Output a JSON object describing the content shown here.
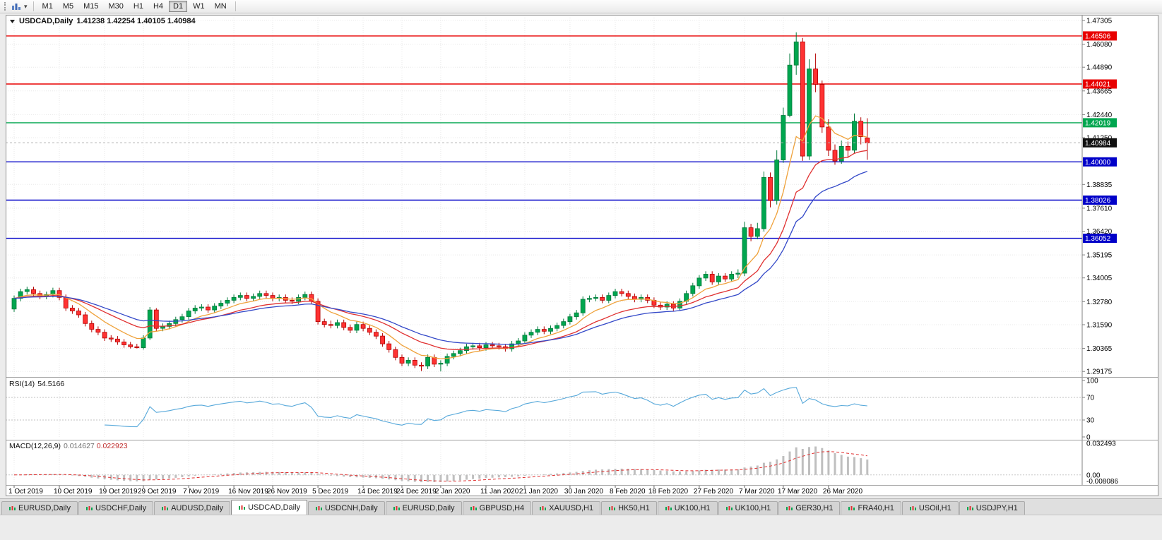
{
  "toolbar": {
    "timeframes": [
      "M1",
      "M5",
      "M15",
      "M30",
      "H1",
      "H4",
      "D1",
      "W1",
      "MN"
    ],
    "active_timeframe": "D1"
  },
  "chart": {
    "title_symbol": "USDCAD,Daily",
    "title_ohlc": "1.41238 1.42254 1.40105 1.40984"
  },
  "indicators": {
    "rsi": {
      "label": "RSI(14)",
      "value": "54.5166",
      "period": 14,
      "axis": [
        "100",
        "70",
        "30",
        "0"
      ],
      "levels": [
        70,
        30
      ],
      "color": "#56a8da"
    },
    "macd": {
      "label": "MACD(12,26,9)",
      "main_value": "0.014627",
      "signal_value": "0.022923",
      "fast": 12,
      "slow": 26,
      "signal": 9,
      "axis": [
        "0.032493",
        "0.00",
        "-0.008086"
      ],
      "max": 0.032493,
      "min": -0.008086,
      "histogram_color": "#bfbfbf",
      "signal_color": "#e03030"
    }
  },
  "chart_data": {
    "type": "candlestick",
    "symbol": "USDCAD",
    "timeframe": "Daily",
    "current_price": 1.40984,
    "current_price_label": "1.40984",
    "ohlc_current": {
      "open": 1.41238,
      "high": 1.42254,
      "low": 1.40105,
      "close": 1.40984
    },
    "y_range": {
      "top": 1.4745,
      "bottom": 1.29
    },
    "y_axis_ticks": [
      "1.47305",
      "1.46080",
      "1.44890",
      "1.43665",
      "1.42440",
      "1.41250",
      "1.38835",
      "1.37610",
      "1.36420",
      "1.35195",
      "1.34005",
      "1.32780",
      "1.31590",
      "1.30365",
      "1.29175"
    ],
    "horizontal_lines": [
      {
        "price": 1.46506,
        "label": "1.46506",
        "color": "#e80000"
      },
      {
        "price": 1.44021,
        "label": "1.44021",
        "color": "#e80000"
      },
      {
        "price": 1.42019,
        "label": "1.42019",
        "color": "#00a64f"
      },
      {
        "price": 1.4,
        "label": "1.40000",
        "color": "#0000c8"
      },
      {
        "price": 1.38026,
        "label": "1.38026",
        "color": "#0000c8"
      },
      {
        "price": 1.36052,
        "label": "1.36052",
        "color": "#0000c8"
      }
    ],
    "moving_averages": [
      {
        "period": 8,
        "color": "#efa23b"
      },
      {
        "period": 17,
        "color": "#e03030"
      },
      {
        "period": 26,
        "color": "#3348c8"
      }
    ],
    "colors": {
      "up": "#00a64f",
      "up_border": "#007a3a",
      "down": "#ff3232",
      "down_border": "#b40000",
      "grid": "#e8e8e8"
    },
    "x_axis_ticks": [
      {
        "i": 0,
        "label": "1 Oct 2019"
      },
      {
        "i": 7,
        "label": "10 Oct 2019"
      },
      {
        "i": 14,
        "label": "19 Oct 2019"
      },
      {
        "i": 20,
        "label": "29 Oct 2019"
      },
      {
        "i": 27,
        "label": "7 Nov 2019"
      },
      {
        "i": 34,
        "label": "16 Nov 2019"
      },
      {
        "i": 40,
        "label": "26 Nov 2019"
      },
      {
        "i": 47,
        "label": "5 Dec 2019"
      },
      {
        "i": 54,
        "label": "14 Dec 2019"
      },
      {
        "i": 60,
        "label": "24 Dec 2019"
      },
      {
        "i": 66,
        "label": "2 Jan 2020"
      },
      {
        "i": 73,
        "label": "11 Jan 2020"
      },
      {
        "i": 79,
        "label": "21 Jan 2020"
      },
      {
        "i": 86,
        "label": "30 Jan 2020"
      },
      {
        "i": 93,
        "label": "8 Feb 2020"
      },
      {
        "i": 99,
        "label": "18 Feb 2020"
      },
      {
        "i": 106,
        "label": "27 Feb 2020"
      },
      {
        "i": 113,
        "label": "7 Mar 2020"
      },
      {
        "i": 119,
        "label": "17 Mar 2020"
      },
      {
        "i": 126,
        "label": "26 Mar 2020"
      }
    ],
    "candles": [
      [
        1.324,
        1.331,
        1.3225,
        1.3295
      ],
      [
        1.3295,
        1.3345,
        1.328,
        1.333
      ],
      [
        1.333,
        1.3355,
        1.3315,
        1.334
      ],
      [
        1.334,
        1.3355,
        1.3305,
        1.332
      ],
      [
        1.332,
        1.3335,
        1.329,
        1.3305
      ],
      [
        1.3305,
        1.333,
        1.329,
        1.3315
      ],
      [
        1.3315,
        1.335,
        1.33,
        1.3335
      ],
      [
        1.3335,
        1.335,
        1.3285,
        1.33
      ],
      [
        1.33,
        1.3315,
        1.323,
        1.3245
      ],
      [
        1.3245,
        1.326,
        1.3215,
        1.323
      ],
      [
        1.323,
        1.3245,
        1.3195,
        1.321
      ],
      [
        1.321,
        1.3225,
        1.315,
        1.3165
      ],
      [
        1.3165,
        1.318,
        1.312,
        1.3135
      ],
      [
        1.3135,
        1.315,
        1.3105,
        1.312
      ],
      [
        1.312,
        1.3135,
        1.3075,
        1.309
      ],
      [
        1.309,
        1.3105,
        1.307,
        1.3085
      ],
      [
        1.3085,
        1.31,
        1.3055,
        1.307
      ],
      [
        1.307,
        1.3085,
        1.304,
        1.3055
      ],
      [
        1.3055,
        1.307,
        1.3036,
        1.3045
      ],
      [
        1.3045,
        1.306,
        1.3036,
        1.304
      ],
      [
        1.304,
        1.3105,
        1.303,
        1.309
      ],
      [
        1.309,
        1.325,
        1.308,
        1.3235
      ],
      [
        1.3235,
        1.3245,
        1.3125,
        1.314
      ],
      [
        1.314,
        1.3165,
        1.3125,
        1.315
      ],
      [
        1.315,
        1.318,
        1.3135,
        1.3165
      ],
      [
        1.3165,
        1.32,
        1.315,
        1.3185
      ],
      [
        1.3185,
        1.3215,
        1.317,
        1.32
      ],
      [
        1.32,
        1.3245,
        1.3185,
        1.323
      ],
      [
        1.323,
        1.326,
        1.3215,
        1.3245
      ],
      [
        1.3245,
        1.3265,
        1.323,
        1.325
      ],
      [
        1.325,
        1.3265,
        1.322,
        1.3235
      ],
      [
        1.3235,
        1.327,
        1.322,
        1.3255
      ],
      [
        1.3255,
        1.3285,
        1.324,
        1.327
      ],
      [
        1.327,
        1.33,
        1.3255,
        1.3285
      ],
      [
        1.3285,
        1.3315,
        1.327,
        1.33
      ],
      [
        1.33,
        1.3325,
        1.3285,
        1.331
      ],
      [
        1.331,
        1.3325,
        1.328,
        1.3295
      ],
      [
        1.3295,
        1.332,
        1.328,
        1.3305
      ],
      [
        1.3305,
        1.3335,
        1.329,
        1.332
      ],
      [
        1.332,
        1.3335,
        1.3295,
        1.331
      ],
      [
        1.331,
        1.3325,
        1.328,
        1.3295
      ],
      [
        1.3295,
        1.3315,
        1.328,
        1.33
      ],
      [
        1.33,
        1.3315,
        1.327,
        1.3285
      ],
      [
        1.3285,
        1.33,
        1.3265,
        1.328
      ],
      [
        1.328,
        1.3315,
        1.3265,
        1.33
      ],
      [
        1.33,
        1.333,
        1.3285,
        1.3315
      ],
      [
        1.3315,
        1.333,
        1.3265,
        1.328
      ],
      [
        1.328,
        1.3295,
        1.316,
        1.3175
      ],
      [
        1.3175,
        1.319,
        1.3145,
        1.316
      ],
      [
        1.316,
        1.318,
        1.314,
        1.3155
      ],
      [
        1.3155,
        1.3185,
        1.314,
        1.317
      ],
      [
        1.317,
        1.3185,
        1.313,
        1.3145
      ],
      [
        1.3145,
        1.316,
        1.3115,
        1.313
      ],
      [
        1.313,
        1.3175,
        1.3115,
        1.316
      ],
      [
        1.316,
        1.3175,
        1.3125,
        1.314
      ],
      [
        1.314,
        1.3155,
        1.3105,
        1.312
      ],
      [
        1.312,
        1.3135,
        1.3085,
        1.31
      ],
      [
        1.31,
        1.3115,
        1.3045,
        1.306
      ],
      [
        1.306,
        1.3075,
        1.3015,
        1.303
      ],
      [
        1.303,
        1.3045,
        1.2975,
        1.299
      ],
      [
        1.299,
        1.3005,
        1.2945,
        1.296
      ],
      [
        1.296,
        1.299,
        1.2945,
        1.2975
      ],
      [
        1.2975,
        1.299,
        1.2935,
        1.295
      ],
      [
        1.295,
        1.2965,
        1.292,
        1.2945
      ],
      [
        1.2945,
        1.3005,
        1.293,
        1.299
      ],
      [
        1.299,
        1.3005,
        1.294,
        1.2955
      ],
      [
        1.2955,
        1.2975,
        1.2918,
        1.296
      ],
      [
        1.296,
        1.301,
        1.2945,
        1.2995
      ],
      [
        1.2995,
        1.3025,
        1.298,
        1.301
      ],
      [
        1.301,
        1.304,
        1.2995,
        1.3025
      ],
      [
        1.3025,
        1.306,
        1.301,
        1.3045
      ],
      [
        1.3045,
        1.3065,
        1.303,
        1.305
      ],
      [
        1.305,
        1.3065,
        1.3025,
        1.304
      ],
      [
        1.304,
        1.307,
        1.3025,
        1.3055
      ],
      [
        1.3055,
        1.307,
        1.3035,
        1.305
      ],
      [
        1.305,
        1.3065,
        1.303,
        1.3045
      ],
      [
        1.3045,
        1.306,
        1.302,
        1.3035
      ],
      [
        1.3035,
        1.3075,
        1.302,
        1.306
      ],
      [
        1.306,
        1.309,
        1.3045,
        1.3075
      ],
      [
        1.3075,
        1.312,
        1.306,
        1.3105
      ],
      [
        1.3105,
        1.3135,
        1.309,
        1.312
      ],
      [
        1.312,
        1.315,
        1.3105,
        1.3135
      ],
      [
        1.3135,
        1.315,
        1.311,
        1.3125
      ],
      [
        1.3125,
        1.3155,
        1.311,
        1.314
      ],
      [
        1.314,
        1.317,
        1.3125,
        1.3155
      ],
      [
        1.3155,
        1.319,
        1.314,
        1.3175
      ],
      [
        1.3175,
        1.3215,
        1.316,
        1.32
      ],
      [
        1.32,
        1.3235,
        1.3185,
        1.322
      ],
      [
        1.322,
        1.3305,
        1.3205,
        1.329
      ],
      [
        1.329,
        1.331,
        1.3275,
        1.3295
      ],
      [
        1.3295,
        1.3315,
        1.328,
        1.33
      ],
      [
        1.33,
        1.3315,
        1.327,
        1.3285
      ],
      [
        1.3285,
        1.3325,
        1.327,
        1.331
      ],
      [
        1.331,
        1.3345,
        1.3295,
        1.333
      ],
      [
        1.333,
        1.3345,
        1.3305,
        1.332
      ],
      [
        1.332,
        1.3335,
        1.329,
        1.3305
      ],
      [
        1.3305,
        1.332,
        1.3275,
        1.329
      ],
      [
        1.329,
        1.3315,
        1.3275,
        1.33
      ],
      [
        1.33,
        1.3315,
        1.327,
        1.3285
      ],
      [
        1.3285,
        1.33,
        1.3245,
        1.326
      ],
      [
        1.326,
        1.3275,
        1.3235,
        1.325
      ],
      [
        1.325,
        1.328,
        1.3235,
        1.3265
      ],
      [
        1.3265,
        1.328,
        1.323,
        1.3245
      ],
      [
        1.3245,
        1.3295,
        1.323,
        1.328
      ],
      [
        1.328,
        1.3335,
        1.3265,
        1.332
      ],
      [
        1.332,
        1.3375,
        1.3305,
        1.336
      ],
      [
        1.336,
        1.3415,
        1.3345,
        1.34
      ],
      [
        1.34,
        1.3435,
        1.3385,
        1.342
      ],
      [
        1.342,
        1.3435,
        1.3365,
        1.338
      ],
      [
        1.338,
        1.3425,
        1.3365,
        1.341
      ],
      [
        1.341,
        1.3425,
        1.338,
        1.3395
      ],
      [
        1.3395,
        1.3435,
        1.338,
        1.342
      ],
      [
        1.342,
        1.3445,
        1.34,
        1.3425
      ],
      [
        1.3425,
        1.369,
        1.341,
        1.366
      ],
      [
        1.366,
        1.368,
        1.359,
        1.3615
      ],
      [
        1.3615,
        1.3685,
        1.36,
        1.3655
      ],
      [
        1.3655,
        1.395,
        1.364,
        1.392
      ],
      [
        1.392,
        1.3945,
        1.3765,
        1.38
      ],
      [
        1.38,
        1.406,
        1.378,
        1.401
      ],
      [
        1.401,
        1.428,
        1.3995,
        1.424
      ],
      [
        1.424,
        1.456,
        1.423,
        1.45
      ],
      [
        1.45,
        1.4669,
        1.445,
        1.462
      ],
      [
        1.462,
        1.464,
        1.4005,
        1.403
      ],
      [
        1.403,
        1.453,
        1.401,
        1.448
      ],
      [
        1.448,
        1.456,
        1.436,
        1.44
      ],
      [
        1.44,
        1.442,
        1.415,
        1.418
      ],
      [
        1.418,
        1.422,
        1.403,
        1.406
      ],
      [
        1.406,
        1.409,
        1.3985,
        1.4005
      ],
      [
        1.4005,
        1.411,
        1.399,
        1.408
      ],
      [
        1.408,
        1.4105,
        1.402,
        1.406
      ],
      [
        1.406,
        1.425,
        1.4045,
        1.421
      ],
      [
        1.421,
        1.423,
        1.409,
        1.413
      ],
      [
        1.41238,
        1.42254,
        1.40105,
        1.40984
      ]
    ]
  },
  "tabs": [
    {
      "label": "EURUSD,Daily",
      "active": false
    },
    {
      "label": "USDCHF,Daily",
      "active": false
    },
    {
      "label": "AUDUSD,Daily",
      "active": false
    },
    {
      "label": "USDCAD,Daily",
      "active": true
    },
    {
      "label": "USDCNH,Daily",
      "active": false
    },
    {
      "label": "EURUSD,Daily",
      "active": false
    },
    {
      "label": "GBPUSD,H4",
      "active": false
    },
    {
      "label": "XAUUSD,H1",
      "active": false
    },
    {
      "label": "HK50,H1",
      "active": false
    },
    {
      "label": "UK100,H1",
      "active": false
    },
    {
      "label": "UK100,H1",
      "active": false
    },
    {
      "label": "GER30,H1",
      "active": false
    },
    {
      "label": "FRA40,H1",
      "active": false
    },
    {
      "label": "USOil,H1",
      "active": false
    },
    {
      "label": "USDJPY,H1",
      "active": false
    }
  ]
}
